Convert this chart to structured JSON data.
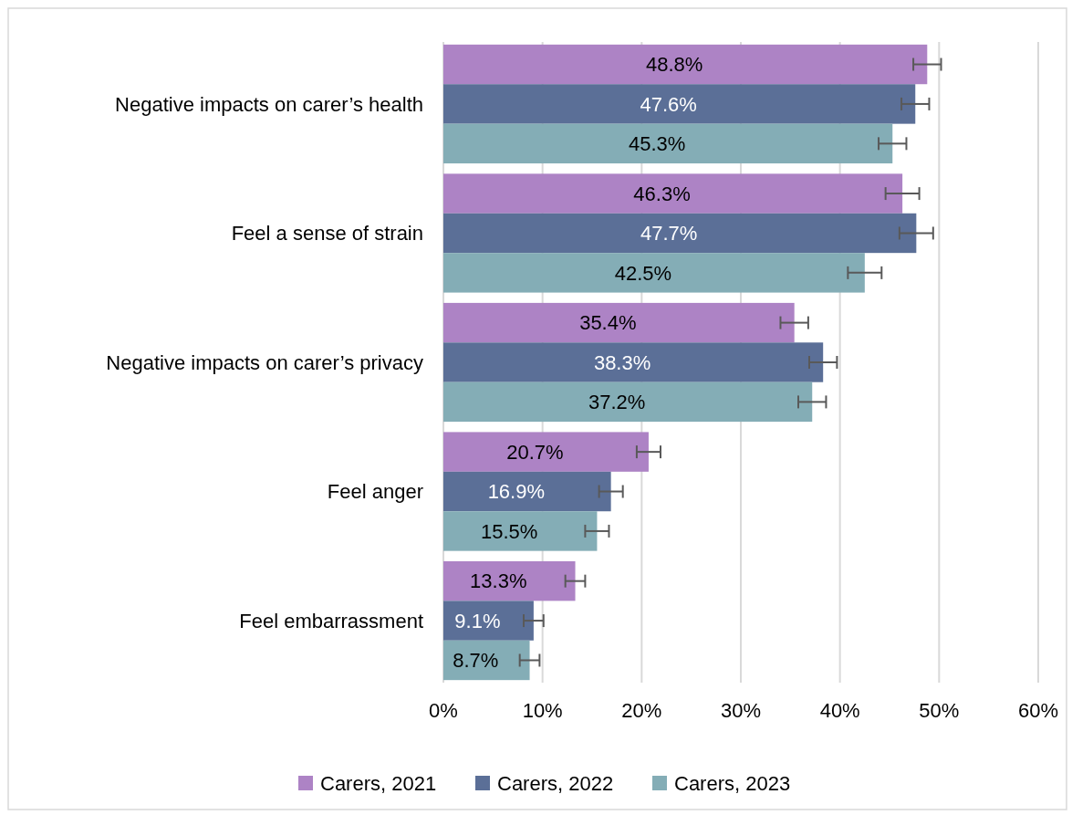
{
  "chart_data": {
    "type": "bar",
    "orientation": "horizontal",
    "categories": [
      "Negative impacts on carer’s health",
      "Feel a sense of strain",
      "Negative impacts on carer’s privacy",
      "Feel anger",
      "Feel embarrassment"
    ],
    "series": [
      {
        "name": "Carers, 2021",
        "color": "#ad83c5",
        "values": [
          48.8,
          46.3,
          35.4,
          20.7,
          13.3
        ],
        "errors": [
          1.4,
          1.7,
          1.4,
          1.2,
          1.0
        ],
        "value_labels": [
          "48.8%",
          "46.3%",
          "35.4%",
          "20.7%",
          "13.3%"
        ]
      },
      {
        "name": "Carers, 2022",
        "color": "#5b6f97",
        "values": [
          47.6,
          47.7,
          38.3,
          16.9,
          9.1
        ],
        "errors": [
          1.4,
          1.7,
          1.4,
          1.2,
          1.0
        ],
        "value_labels": [
          "47.6%",
          "47.7%",
          "38.3%",
          "16.9%",
          "9.1%"
        ]
      },
      {
        "name": "Carers, 2023",
        "color": "#84adb6",
        "values": [
          45.3,
          42.5,
          37.2,
          15.5,
          8.7
        ],
        "errors": [
          1.4,
          1.7,
          1.4,
          1.2,
          1.0
        ],
        "value_labels": [
          "45.3%",
          "42.5%",
          "37.2%",
          "15.5%",
          "8.7%"
        ]
      }
    ],
    "xlim": [
      0,
      60
    ],
    "xticks": [
      {
        "value": 0,
        "label": "0%"
      },
      {
        "value": 10,
        "label": "10%"
      },
      {
        "value": 20,
        "label": "20%"
      },
      {
        "value": 30,
        "label": "30%"
      },
      {
        "value": 40,
        "label": "40%"
      },
      {
        "value": 50,
        "label": "50%"
      },
      {
        "value": 60,
        "label": "60%"
      }
    ],
    "grid": "x",
    "legend": "bottom"
  }
}
